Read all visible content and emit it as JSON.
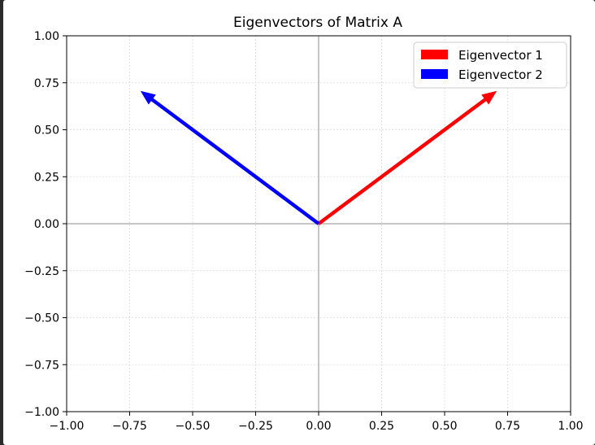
{
  "chart_data": {
    "type": "quiver",
    "title": "Eigenvectors of Matrix A",
    "xlabel": "",
    "ylabel": "",
    "xlim": [
      -1.0,
      1.0
    ],
    "ylim": [
      -1.0,
      1.0
    ],
    "xticks": [
      "−1.00",
      "−0.75",
      "−0.50",
      "−0.25",
      "0.00",
      "0.25",
      "0.50",
      "0.75",
      "1.00"
    ],
    "yticks": [
      "−1.00",
      "−0.75",
      "−0.50",
      "−0.25",
      "0.00",
      "0.25",
      "0.50",
      "0.75",
      "1.00"
    ],
    "grid": true,
    "legend_position": "top-right",
    "series": [
      {
        "name": "Eigenvector 1",
        "color": "#ff0000",
        "origin": [
          0,
          0
        ],
        "vector": [
          0.707,
          0.707
        ]
      },
      {
        "name": "Eigenvector 2",
        "color": "#0000ff",
        "origin": [
          0,
          0
        ],
        "vector": [
          -0.707,
          0.707
        ]
      }
    ]
  }
}
